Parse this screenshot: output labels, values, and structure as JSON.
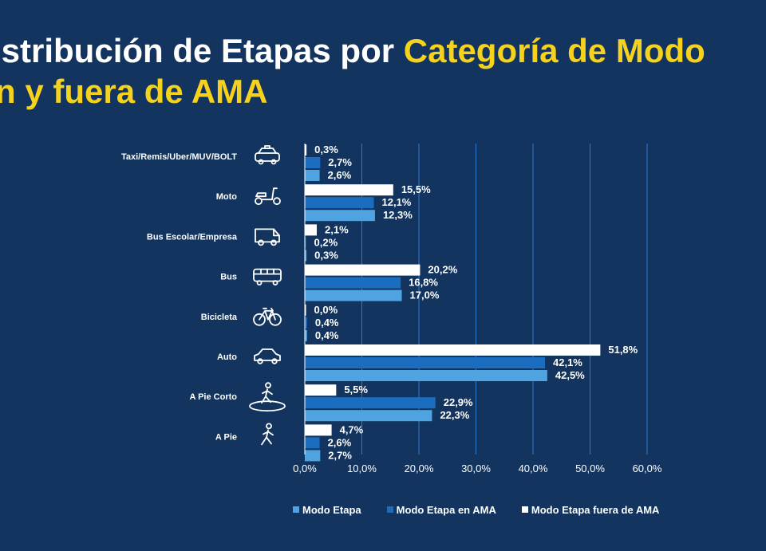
{
  "title": {
    "line1_white": "istribución de Etapas por ",
    "line1_yellow": "Categoría de Modo",
    "line2_yellow": "n y fuera de AMA"
  },
  "colors": {
    "background": "#12345e",
    "title_highlight": "#f6d21c",
    "modo_etapa": "#4ea3e0",
    "modo_etapa_ama": "#1a6dbf",
    "modo_etapa_fuera_ama": "#ffffff",
    "grid": "#2f7ad0"
  },
  "chart_data": {
    "type": "bar",
    "orientation": "horizontal",
    "categories": [
      "Taxi/Remis/Uber/MUV/BOLT",
      "Moto",
      "Bus Escolar/Empresa",
      "Bus",
      "Bicicleta",
      "Auto",
      "A Pie Corto",
      "A Pie"
    ],
    "category_icons": [
      "taxi-icon",
      "scooter-icon",
      "van-icon",
      "bus-icon",
      "bicycle-icon",
      "car-icon",
      "pedestrian-circle-icon",
      "pedestrian-icon"
    ],
    "series": [
      {
        "name": "Modo Etapa fuera de AMA",
        "values": [
          0.3,
          15.5,
          2.1,
          20.2,
          0.0,
          51.8,
          5.5,
          4.7
        ],
        "labels": [
          "0,3%",
          "15,5%",
          "2,1%",
          "20,2%",
          "0,0%",
          "51,8%",
          "5,5%",
          "4,7%"
        ]
      },
      {
        "name": "Modo Etapa en AMA",
        "values": [
          2.7,
          12.1,
          0.2,
          16.8,
          0.4,
          42.1,
          22.9,
          2.6
        ],
        "labels": [
          "2,7%",
          "12,1%",
          "0,2%",
          "16,8%",
          "0,4%",
          "42,1%",
          "22,9%",
          "2,6%"
        ]
      },
      {
        "name": "Modo Etapa",
        "values": [
          2.6,
          12.3,
          0.3,
          17.0,
          0.4,
          42.5,
          22.3,
          2.7
        ],
        "labels": [
          "2,6%",
          "12,3%",
          "0,3%",
          "17,0%",
          "0,4%",
          "42,5%",
          "22,3%",
          "2,7%"
        ]
      }
    ],
    "xlim": [
      0,
      60
    ],
    "xticks": [
      0,
      10,
      20,
      30,
      40,
      50,
      60
    ],
    "xtick_labels": [
      "0,0%",
      "10,0%",
      "20,0%",
      "30,0%",
      "40,0%",
      "50,0%",
      "60,0%"
    ],
    "grid": true,
    "legend": {
      "position": "bottom",
      "entries": [
        "Modo Etapa",
        "Modo Etapa en AMA",
        "Modo Etapa fuera de AMA"
      ]
    }
  }
}
